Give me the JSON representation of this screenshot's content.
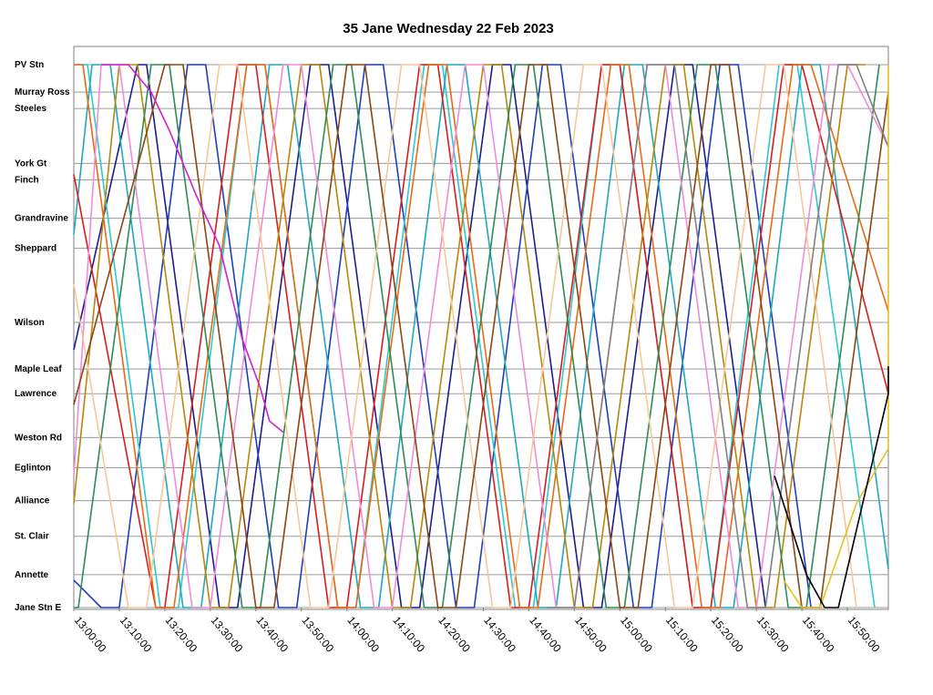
{
  "chart_data": {
    "type": "line",
    "title": "35 Jane Wednesday 22 Feb 2023",
    "xlabel": "",
    "ylabel": "",
    "x_range": [
      "13:00:00",
      "15:59:00"
    ],
    "x_ticks": [
      "13:00:00",
      "13:10:00",
      "13:20:00",
      "13:30:00",
      "13:40:00",
      "13:50:00",
      "14:00:00",
      "14:10:00",
      "14:20:00",
      "14:30:00",
      "14:40:00",
      "14:50:00",
      "15:00:00",
      "15:10:00",
      "15:20:00",
      "15:30:00",
      "15:40:00",
      "15:50:00"
    ],
    "stops": [
      {
        "name": "PV Stn",
        "dist": 0.0
      },
      {
        "name": "Murray Ross",
        "dist": 0.5
      },
      {
        "name": "Steeles",
        "dist": 0.8
      },
      {
        "name": "York Gt",
        "dist": 1.8
      },
      {
        "name": "Finch",
        "dist": 2.1
      },
      {
        "name": "Grandravine",
        "dist": 2.8
      },
      {
        "name": "Sheppard",
        "dist": 3.35
      },
      {
        "name": "Wilson",
        "dist": 4.7
      },
      {
        "name": "Maple Leaf",
        "dist": 5.55
      },
      {
        "name": "Lawrence",
        "dist": 6.0
      },
      {
        "name": "Weston Rd",
        "dist": 6.8
      },
      {
        "name": "Eglinton",
        "dist": 7.35
      },
      {
        "name": "Alliance",
        "dist": 7.95
      },
      {
        "name": "St. Clair",
        "dist": 8.6
      },
      {
        "name": "Annette",
        "dist": 9.3
      },
      {
        "name": "Jane Stn E",
        "dist": 9.9
      }
    ],
    "y_range": [
      0,
      9.9
    ],
    "grid": true,
    "legend": "none",
    "series": [
      {
        "color": "#1c1c8c",
        "points": [
          [
            "12:58",
            5.2
          ],
          [
            "13:14",
            0.0
          ],
          [
            "13:16",
            0.0
          ],
          [
            "13:32",
            9.9
          ],
          [
            "13:36",
            9.9
          ],
          [
            "13:52",
            0.0
          ],
          [
            "13:56",
            0.0
          ],
          [
            "14:12",
            9.9
          ],
          [
            "14:16",
            9.9
          ],
          [
            "14:32",
            0.0
          ],
          [
            "14:36",
            0.0
          ],
          [
            "14:52",
            9.9
          ],
          [
            "14:56",
            9.9
          ],
          [
            "15:12",
            0.0
          ],
          [
            "15:16",
            0.0
          ],
          [
            "15:32",
            9.9
          ]
        ]
      },
      {
        "color": "#1f3fb8",
        "points": [
          [
            "12:58",
            9.4
          ],
          [
            "13:06",
            9.9
          ],
          [
            "13:10",
            9.9
          ],
          [
            "13:25",
            0.0
          ],
          [
            "13:29",
            0.0
          ],
          [
            "13:45",
            9.9
          ],
          [
            "13:49",
            9.9
          ],
          [
            "14:04",
            0.0
          ],
          [
            "14:08",
            0.0
          ],
          [
            "14:24",
            9.9
          ],
          [
            "14:28",
            9.9
          ],
          [
            "14:43",
            0.0
          ],
          [
            "14:47",
            0.0
          ],
          [
            "15:03",
            9.9
          ],
          [
            "15:07",
            9.9
          ],
          [
            "15:22",
            0.0
          ],
          [
            "15:26",
            0.0
          ],
          [
            "15:42",
            9.9
          ]
        ]
      },
      {
        "color": "#2ec8d0",
        "points": [
          [
            "12:58",
            0.0
          ],
          [
            "13:03",
            0.0
          ],
          [
            "13:19",
            9.9
          ],
          [
            "13:23",
            9.9
          ],
          [
            "13:38",
            0.0
          ],
          [
            "13:42",
            0.0
          ],
          [
            "13:58",
            9.9
          ],
          [
            "14:02",
            9.9
          ],
          [
            "14:17",
            0.0
          ],
          [
            "14:21",
            0.0
          ],
          [
            "14:37",
            9.9
          ],
          [
            "14:41",
            9.9
          ],
          [
            "14:56",
            0.0
          ],
          [
            "15:00",
            0.0
          ],
          [
            "15:16",
            9.9
          ],
          [
            "15:20",
            9.9
          ],
          [
            "15:35",
            0.0
          ],
          [
            "15:39",
            0.0
          ],
          [
            "15:56",
            9.9
          ]
        ]
      },
      {
        "color": "#1ea8c0",
        "points": [
          [
            "12:58",
            3.1
          ],
          [
            "13:04",
            0.0
          ],
          [
            "13:08",
            0.0
          ],
          [
            "13:24",
            9.9
          ],
          [
            "13:28",
            9.9
          ],
          [
            "13:43",
            0.0
          ],
          [
            "13:47",
            0.0
          ],
          [
            "14:03",
            9.9
          ],
          [
            "14:07",
            9.9
          ],
          [
            "14:22",
            0.0
          ],
          [
            "14:26",
            0.0
          ],
          [
            "14:42",
            9.9
          ],
          [
            "14:46",
            9.9
          ],
          [
            "15:01",
            0.0
          ],
          [
            "15:05",
            0.0
          ],
          [
            "15:21",
            9.9
          ],
          [
            "15:25",
            9.9
          ],
          [
            "15:40",
            0.0
          ],
          [
            "15:44",
            0.0
          ],
          [
            "15:59",
            9.2
          ]
        ]
      },
      {
        "color": "#d81c1c",
        "points": [
          [
            "12:58",
            2.0
          ],
          [
            "13:18",
            9.9
          ],
          [
            "13:20",
            9.9
          ],
          [
            "13:36",
            0.0
          ],
          [
            "13:40",
            0.0
          ],
          [
            "13:56",
            9.9
          ],
          [
            "14:00",
            9.9
          ],
          [
            "14:16",
            0.0
          ],
          [
            "14:20",
            0.0
          ],
          [
            "14:36",
            9.9
          ],
          [
            "14:40",
            9.9
          ],
          [
            "14:56",
            0.0
          ],
          [
            "15:00",
            0.0
          ],
          [
            "15:16",
            9.9
          ],
          [
            "15:20",
            9.9
          ],
          [
            "15:36",
            0.0
          ],
          [
            "15:40",
            0.0
          ],
          [
            "15:59",
            6.0
          ]
        ]
      },
      {
        "color": "#e86a14",
        "points": [
          [
            "12:58",
            0.0
          ],
          [
            "13:02",
            0.0
          ],
          [
            "13:18",
            9.9
          ],
          [
            "13:22",
            9.9
          ],
          [
            "13:38",
            0.0
          ],
          [
            "13:42",
            0.0
          ],
          [
            "13:58",
            9.9
          ],
          [
            "14:02",
            9.9
          ],
          [
            "14:18",
            0.0
          ],
          [
            "14:22",
            0.0
          ],
          [
            "14:38",
            9.9
          ],
          [
            "14:42",
            9.9
          ],
          [
            "14:58",
            0.0
          ],
          [
            "15:02",
            0.0
          ],
          [
            "15:18",
            9.9
          ],
          [
            "15:22",
            9.9
          ],
          [
            "15:38",
            0.0
          ],
          [
            "15:42",
            0.0
          ],
          [
            "15:59",
            4.5
          ]
        ]
      },
      {
        "color": "#b8860b",
        "points": [
          [
            "12:58",
            8.0
          ],
          [
            "13:10",
            0.0
          ],
          [
            "13:14",
            0.0
          ],
          [
            "13:30",
            9.9
          ],
          [
            "13:34",
            9.9
          ],
          [
            "13:50",
            0.0
          ],
          [
            "13:54",
            0.0
          ],
          [
            "14:10",
            9.9
          ],
          [
            "14:14",
            9.9
          ],
          [
            "14:30",
            0.0
          ],
          [
            "14:34",
            0.0
          ],
          [
            "14:50",
            9.9
          ],
          [
            "14:54",
            9.9
          ],
          [
            "15:10",
            0.0
          ],
          [
            "15:14",
            0.0
          ],
          [
            "15:30",
            9.9
          ],
          [
            "15:34",
            9.9
          ],
          [
            "15:50",
            0.0
          ],
          [
            "15:54",
            0.0
          ]
        ]
      },
      {
        "color": "#2e8b57",
        "points": [
          [
            "12:58",
            9.9
          ],
          [
            "13:01",
            9.9
          ],
          [
            "13:17",
            0.0
          ],
          [
            "13:21",
            0.0
          ],
          [
            "13:37",
            9.9
          ],
          [
            "13:41",
            9.9
          ],
          [
            "13:57",
            0.0
          ],
          [
            "14:01",
            0.0
          ],
          [
            "14:17",
            9.9
          ],
          [
            "14:21",
            9.9
          ],
          [
            "14:37",
            0.0
          ],
          [
            "14:41",
            0.0
          ],
          [
            "14:57",
            9.9
          ],
          [
            "15:01",
            9.9
          ],
          [
            "15:17",
            0.0
          ],
          [
            "15:21",
            0.0
          ],
          [
            "15:37",
            9.9
          ],
          [
            "15:41",
            9.9
          ],
          [
            "15:57",
            0.0
          ]
        ]
      },
      {
        "color": "#f08cd8",
        "points": [
          [
            "12:58",
            7.5
          ],
          [
            "13:06",
            0.0
          ],
          [
            "13:10",
            0.0
          ],
          [
            "13:26",
            9.9
          ],
          [
            "13:30",
            9.9
          ],
          [
            "13:46",
            0.0
          ],
          [
            "13:50",
            0.0
          ],
          [
            "14:06",
            9.9
          ],
          [
            "14:10",
            9.9
          ],
          [
            "14:26",
            0.0
          ],
          [
            "14:30",
            0.0
          ],
          [
            "14:46",
            9.9
          ],
          [
            "14:50",
            9.9
          ],
          [
            "15:06",
            0.0
          ],
          [
            "15:10",
            0.0
          ],
          [
            "15:26",
            9.9
          ],
          [
            "15:30",
            9.9
          ],
          [
            "15:46",
            0.0
          ],
          [
            "15:50",
            0.0
          ],
          [
            "15:59",
            1.5
          ]
        ]
      },
      {
        "color": "#f5c89a",
        "points": [
          [
            "12:58",
            4.0
          ],
          [
            "13:12",
            9.9
          ],
          [
            "13:16",
            9.9
          ],
          [
            "13:32",
            0.0
          ],
          [
            "13:36",
            0.0
          ],
          [
            "13:52",
            9.9
          ],
          [
            "13:56",
            9.9
          ],
          [
            "14:12",
            0.0
          ],
          [
            "14:16",
            0.0
          ],
          [
            "14:32",
            9.9
          ],
          [
            "14:36",
            9.9
          ],
          [
            "14:52",
            0.0
          ],
          [
            "14:56",
            0.0
          ],
          [
            "15:12",
            9.9
          ],
          [
            "15:16",
            9.9
          ],
          [
            "15:32",
            0.0
          ],
          [
            "15:36",
            0.0
          ],
          [
            "15:52",
            9.9
          ]
        ]
      },
      {
        "color": "#8b4513",
        "points": [
          [
            "12:58",
            6.2
          ],
          [
            "13:20",
            0.0
          ],
          [
            "13:24",
            0.0
          ],
          [
            "13:40",
            9.9
          ],
          [
            "13:44",
            9.9
          ],
          [
            "14:00",
            0.0
          ],
          [
            "14:04",
            0.0
          ],
          [
            "14:20",
            9.9
          ],
          [
            "14:24",
            9.9
          ],
          [
            "14:40",
            0.0
          ],
          [
            "14:44",
            0.0
          ],
          [
            "15:00",
            9.9
          ],
          [
            "15:04",
            9.9
          ],
          [
            "15:20",
            0.0
          ],
          [
            "15:24",
            0.0
          ],
          [
            "15:40",
            9.9
          ],
          [
            "15:44",
            9.9
          ],
          [
            "15:59",
            0.5
          ]
        ]
      },
      {
        "color": "#d020d0",
        "points": [
          [
            "13:06",
            0.0
          ],
          [
            "13:12",
            0.0
          ],
          [
            "13:17",
            0.5
          ],
          [
            "13:21",
            1.2
          ],
          [
            "13:27",
            2.4
          ],
          [
            "13:32",
            3.3
          ],
          [
            "13:37",
            5.0
          ],
          [
            "13:41",
            5.9
          ],
          [
            "13:43",
            6.5
          ],
          [
            "13:46",
            6.7
          ]
        ]
      },
      {
        "color": "#808080",
        "points": [
          [
            "14:44",
            9.9
          ],
          [
            "14:50",
            9.9
          ],
          [
            "15:06",
            0.0
          ],
          [
            "15:12",
            0.0
          ],
          [
            "15:28",
            9.9
          ],
          [
            "15:32",
            9.9
          ],
          [
            "15:48",
            0.0
          ],
          [
            "15:52",
            0.0
          ],
          [
            "15:59",
            1.5
          ]
        ]
      },
      {
        "color": "#e8c020",
        "points": [
          [
            "15:36",
            9.4
          ],
          [
            "15:40",
            9.9
          ],
          [
            "15:44",
            9.9
          ],
          [
            "15:52",
            8.0
          ],
          [
            "15:59",
            7.0
          ],
          [
            "15:59",
            0.0
          ]
        ]
      },
      {
        "color": "#000000",
        "points": [
          [
            "15:34",
            7.5
          ],
          [
            "15:41",
            9.3
          ],
          [
            "15:45",
            9.9
          ],
          [
            "15:48",
            9.9
          ],
          [
            "15:59",
            6.0
          ],
          [
            "15:59",
            5.5
          ]
        ]
      }
    ]
  }
}
